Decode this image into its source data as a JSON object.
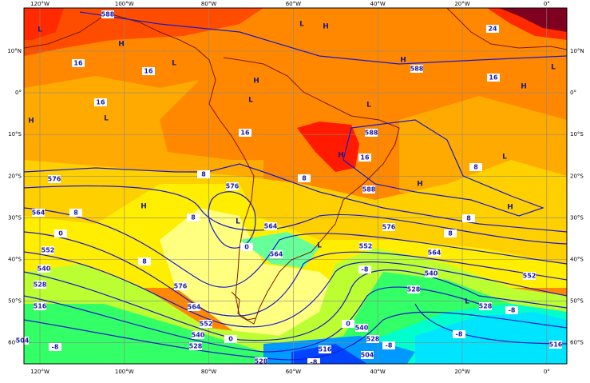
{
  "map": {
    "lon_labels": [
      "120°W",
      "100°W",
      "80°W",
      "60°W",
      "40°W",
      "20°W",
      "0°"
    ],
    "lat_labels": [
      "10°N",
      "0°",
      "10°S",
      "20°S",
      "30°S",
      "40°S",
      "50°S",
      "60°S"
    ],
    "contour_labels": [
      "588",
      "24",
      "16",
      "16",
      "16",
      "588",
      "16",
      "16",
      "588",
      "16",
      "8",
      "8",
      "8",
      "576",
      "576",
      "588",
      "564",
      "8",
      "8",
      "8",
      "0",
      "564",
      "576",
      "8",
      "552",
      "0",
      "564",
      "552",
      "564",
      "8",
      "540",
      "-8",
      "540",
      "552",
      "528",
      "576",
      "528",
      "516",
      "564",
      "528",
      "-8",
      "552",
      "0",
      "540",
      "540",
      "-8",
      "504",
      "-8",
      "0",
      "528",
      "528",
      "516",
      "-8",
      "504",
      "516",
      "-8",
      "528"
    ],
    "centers": [
      "L",
      "H",
      "L",
      "H",
      "L",
      "L",
      "H",
      "L",
      "H",
      "L",
      "H",
      "H",
      "L",
      "H",
      "L",
      "H",
      "H",
      "L",
      "L",
      "L",
      "H"
    ]
  }
}
